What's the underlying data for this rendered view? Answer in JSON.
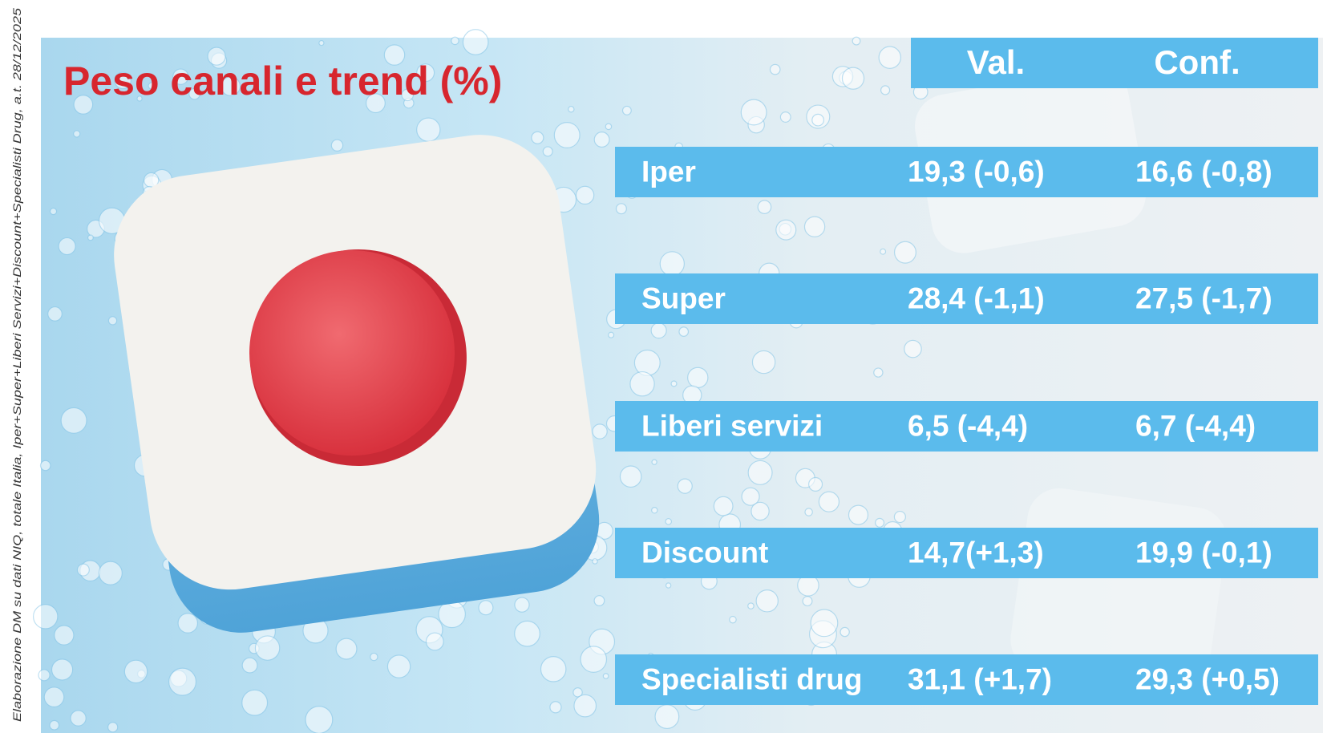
{
  "source_note": "Elaborazione DM su dati NIQ, totale Italia, Iper+Super+Liberi Servizi+Discount+Specialisti Drug, a.t. 28/12/2025",
  "title": "Peso canali e trend (%)",
  "table": {
    "columns": [
      "Val.",
      "Conf."
    ],
    "rows": [
      [
        "Iper",
        "19,3 (-0,6)",
        "16,6 (-0,8)"
      ],
      [
        "Super",
        "28,4 (-1,1)",
        "27,5 (-1,7)"
      ],
      [
        "Liberi servizi",
        "6,5 (-4,4)",
        "6,7 (-4,4)"
      ],
      [
        "Discount",
        "14,7(+1,3)",
        "19,9 (-0,1)"
      ],
      [
        "Specialisti drug",
        "31,1 (+1,7)",
        "29,3 (+0,5)"
      ]
    ]
  }
}
